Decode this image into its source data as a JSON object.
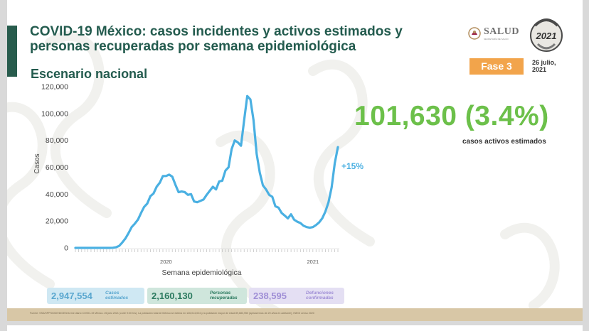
{
  "header": {
    "title": "COVID-19 México: casos incidentes y activos estimados y personas recuperadas por semana epidemiológica",
    "subtitle": "Escenario nacional",
    "fase": "Fase 3",
    "date": "26 julio, 2021",
    "logo_salud": "SALUD",
    "logo_salud_sub": "SECRETARÍA DE SALUD",
    "logo_year": "2021"
  },
  "highlight": {
    "value": "101,630 (3.4%)",
    "label": "casos activos estimados",
    "change": "+15%"
  },
  "stats": {
    "cases": {
      "value": "2,947,554",
      "label": "Casos estimados"
    },
    "recovered": {
      "value": "2,160,130",
      "label": "Personas recuperadas"
    },
    "deaths": {
      "value": "238,595",
      "label": "Defunciones confirmadas"
    }
  },
  "footer": {
    "source": "Fuente: SSA/SPPS/DGE/DIOE/Informe diario COVID-19 México. 26 julio 2021 (corte 9:00 hrs). La población total de México se estima en 126,014,024 y la población mayor de edad 89,683,950 (aplicaremos de 20 años en adelante), INEGI censo 2020"
  },
  "chart_data": {
    "type": "line",
    "xlabel": "Semana epidemiológica",
    "ylabel": "Casos",
    "ylim": [
      0,
      120000
    ],
    "yticks": [
      0,
      20000,
      40000,
      60000,
      80000,
      100000,
      120000
    ],
    "ytick_labels": [
      "0",
      "20,000",
      "40,000",
      "60,000",
      "80,000",
      "100,000",
      "120,000"
    ],
    "x_year_labels": [
      {
        "week_index": 29,
        "label": "2020"
      },
      {
        "week_index": 76,
        "label": "2021"
      }
    ],
    "grid": false,
    "color": "#4ab0e2",
    "series": [
      {
        "values": [
          0,
          0,
          0,
          0,
          0,
          0,
          0,
          0,
          0,
          0,
          0,
          0,
          100,
          500,
          1500,
          4000,
          7000,
          11000,
          15500,
          18000,
          21000,
          26000,
          30500,
          33000,
          38500,
          40500,
          45500,
          48500,
          53500,
          53500,
          54500,
          53000,
          47000,
          41500,
          42000,
          41500,
          39500,
          40000,
          34500,
          34000,
          35000,
          36000,
          39500,
          42500,
          45500,
          43500,
          49500,
          50000,
          57500,
          60000,
          73500,
          80000,
          78500,
          76000,
          95000,
          113000,
          110500,
          95000,
          70000,
          56000,
          46500,
          43500,
          39500,
          38000,
          31000,
          30000,
          26000,
          24000,
          22000,
          25000,
          21000,
          19500,
          18500,
          16500,
          15500,
          15000,
          15500,
          17000,
          19000,
          22000,
          27000,
          34000,
          45000,
          63000,
          75000
        ]
      }
    ]
  }
}
